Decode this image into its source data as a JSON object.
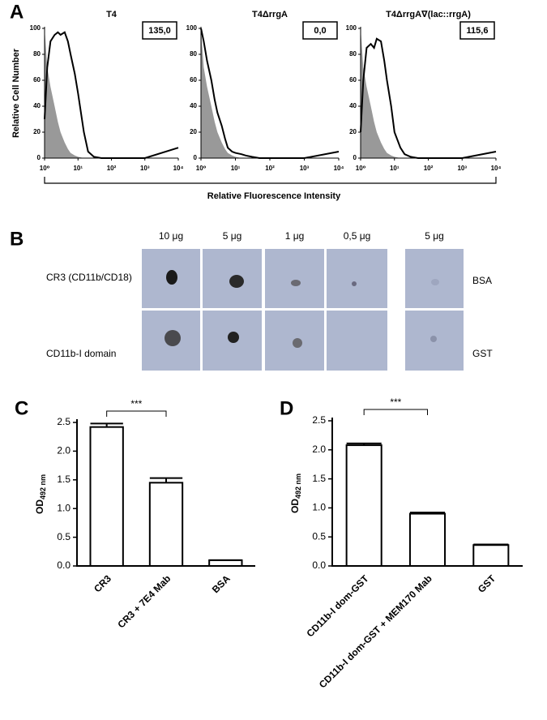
{
  "panel_labels": [
    "A",
    "B",
    "C",
    "D"
  ],
  "panel_a": {
    "y_label": "Relative Cell Number",
    "x_label": "Relative Fluorescence Intensity"
  },
  "chart_data": [
    {
      "type": "line",
      "title": "T4",
      "annotation": "135,0",
      "xscale": "log",
      "x": [
        1,
        1.2,
        1.5,
        2,
        2.5,
        3,
        4,
        5,
        6,
        8,
        10,
        15,
        20,
        30,
        50,
        100,
        1000,
        10000
      ],
      "xlim": [
        1,
        10000
      ],
      "xticks": [
        {
          "value": 1,
          "label": "10⁰"
        },
        {
          "value": 10,
          "label": "10¹"
        },
        {
          "value": 100,
          "label": "10²"
        },
        {
          "value": 1000,
          "label": "10³"
        },
        {
          "value": 10000,
          "label": "10⁴"
        }
      ],
      "ylim": [
        0,
        100
      ],
      "yticks": [
        0,
        20,
        40,
        60,
        80,
        100
      ],
      "series": [
        {
          "color": "#999999",
          "fill": true,
          "values": [
            100,
            70,
            55,
            40,
            28,
            20,
            12,
            7,
            4,
            2,
            1,
            0,
            0,
            0,
            0,
            0,
            0,
            0
          ]
        },
        {
          "color": "#000000",
          "fill": false,
          "values": [
            30,
            70,
            90,
            95,
            97,
            95,
            97,
            90,
            80,
            65,
            50,
            20,
            5,
            1,
            0,
            0,
            0,
            8
          ]
        }
      ]
    },
    {
      "type": "line",
      "title": "T4ΔrrgA",
      "annotation": "0,0",
      "xscale": "log",
      "x": [
        1,
        1.2,
        1.5,
        2,
        2.5,
        3,
        4,
        5,
        6,
        8,
        10,
        15,
        20,
        30,
        50,
        100,
        1000,
        10000
      ],
      "xlim": [
        1,
        10000
      ],
      "xticks": [
        {
          "value": 1,
          "label": "10⁰"
        },
        {
          "value": 10,
          "label": "10¹"
        },
        {
          "value": 100,
          "label": "10²"
        },
        {
          "value": 1000,
          "label": "10³"
        },
        {
          "value": 10000,
          "label": "10⁴"
        }
      ],
      "ylim": [
        0,
        100
      ],
      "yticks": [
        0,
        20,
        40,
        60,
        80,
        100
      ],
      "series": [
        {
          "color": "#999999",
          "fill": true,
          "values": [
            100,
            70,
            55,
            40,
            28,
            20,
            12,
            7,
            4,
            2,
            1,
            0,
            0,
            0,
            0,
            0,
            0,
            0
          ]
        },
        {
          "color": "#000000",
          "fill": false,
          "values": [
            100,
            90,
            75,
            60,
            45,
            35,
            25,
            15,
            8,
            5,
            4,
            3,
            2,
            1,
            0,
            0,
            0,
            5
          ]
        }
      ]
    },
    {
      "type": "line",
      "title": "T4ΔrrgA∇(lac::rrgA)",
      "annotation": "115,6",
      "xscale": "log",
      "x": [
        1,
        1.2,
        1.5,
        2,
        2.5,
        3,
        4,
        5,
        6,
        8,
        10,
        15,
        20,
        30,
        50,
        100,
        1000,
        10000
      ],
      "xlim": [
        1,
        10000
      ],
      "xticks": [
        {
          "value": 1,
          "label": "10⁰"
        },
        {
          "value": 10,
          "label": "10¹"
        },
        {
          "value": 100,
          "label": "10²"
        },
        {
          "value": 1000,
          "label": "10³"
        },
        {
          "value": 10000,
          "label": "10⁴"
        }
      ],
      "ylim": [
        0,
        100
      ],
      "yticks": [
        0,
        20,
        40,
        60,
        80,
        100
      ],
      "series": [
        {
          "color": "#999999",
          "fill": true,
          "values": [
            100,
            70,
            55,
            40,
            28,
            20,
            12,
            7,
            4,
            2,
            1,
            0,
            0,
            0,
            0,
            0,
            0,
            0
          ]
        },
        {
          "color": "#000000",
          "fill": false,
          "values": [
            20,
            60,
            85,
            88,
            85,
            92,
            90,
            75,
            60,
            40,
            20,
            8,
            3,
            1,
            0,
            0,
            0,
            5
          ]
        }
      ]
    },
    {
      "type": "bar",
      "categories": [
        "CR3",
        "CR3 + 7E4 Mab",
        "BSA"
      ],
      "values": [
        2.42,
        1.45,
        0.1
      ],
      "errors": [
        0.06,
        0.08,
        0
      ],
      "color": "#ffffff",
      "ylim": [
        0,
        2.5
      ],
      "yticks": [
        {
          "value": 0,
          "label": "0.0"
        },
        0.5,
        {
          "value": 1,
          "label": "1.0"
        },
        1.5,
        {
          "value": 2,
          "label": "2.0"
        },
        2.5
      ],
      "y_label": "OD",
      "y_label_sub": "492 nm",
      "annotation": "***"
    },
    {
      "type": "bar",
      "categories": [
        "CD11b-I dom-GST",
        "CD11b-I dom-GST + MEM170 Mab",
        "GST"
      ],
      "values": [
        2.08,
        0.9,
        0.36
      ],
      "errors": [
        0.03,
        0.02,
        0.01
      ],
      "color": "#ffffff",
      "ylim": [
        0,
        2.5
      ],
      "yticks": [
        {
          "value": 0,
          "label": "0.0"
        },
        0.5,
        {
          "value": 1,
          "label": "1.0"
        },
        1.5,
        {
          "value": 2,
          "label": "2.0"
        },
        2.5
      ],
      "y_label": "OD",
      "y_label_sub": "492 nm",
      "annotation": "***"
    }
  ],
  "blot": {
    "column_labels": [
      "10 μg",
      "5 μg",
      "1 μg",
      "0,5 μg",
      "5 μg"
    ],
    "row_labels": [
      "CR3 (CD11b/CD18)",
      "CD11b-I domain"
    ],
    "control_labels": [
      "BSA",
      "GST"
    ]
  }
}
